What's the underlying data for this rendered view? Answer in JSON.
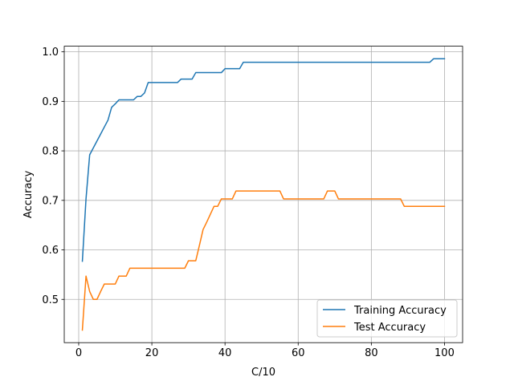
{
  "chart_data": {
    "type": "line",
    "title": "",
    "xlabel": "C/10",
    "ylabel": "Accuracy",
    "xlim": [
      -3.95,
      104.95
    ],
    "ylim": [
      0.4126,
      1.0114
    ],
    "xticks": [
      0,
      20,
      40,
      60,
      80,
      100
    ],
    "yticks": [
      0.5,
      0.6,
      0.7,
      0.8,
      0.9,
      1.0
    ],
    "xtick_labels": [
      "0",
      "20",
      "40",
      "60",
      "80",
      "100"
    ],
    "ytick_labels": [
      "0.5",
      "0.6",
      "0.7",
      "0.8",
      "0.9",
      "1.0"
    ],
    "grid": true,
    "legend_position": "lower-right",
    "series": [
      {
        "name": "Training Accuracy",
        "color": "#1f77b4",
        "x": [
          1,
          2,
          3,
          4,
          5,
          6,
          7,
          8,
          9,
          10,
          11,
          12,
          13,
          14,
          15,
          16,
          17,
          18,
          19,
          20,
          21,
          22,
          23,
          24,
          25,
          26,
          27,
          28,
          29,
          30,
          31,
          32,
          33,
          34,
          35,
          36,
          37,
          38,
          39,
          40,
          41,
          42,
          43,
          44,
          45,
          46,
          47,
          48,
          49,
          50,
          51,
          52,
          53,
          54,
          55,
          56,
          57,
          58,
          59,
          60,
          61,
          62,
          63,
          64,
          65,
          66,
          67,
          68,
          69,
          70,
          71,
          72,
          73,
          74,
          75,
          76,
          77,
          78,
          79,
          80,
          81,
          82,
          83,
          84,
          85,
          86,
          87,
          88,
          89,
          90,
          91,
          92,
          93,
          94,
          95,
          96,
          97,
          98,
          99,
          100
        ],
        "values": [
          0.577,
          0.703,
          0.792,
          0.806,
          0.82,
          0.834,
          0.848,
          0.862,
          0.888,
          0.895,
          0.903,
          0.903,
          0.903,
          0.903,
          0.903,
          0.91,
          0.91,
          0.917,
          0.938,
          0.938,
          0.938,
          0.938,
          0.938,
          0.938,
          0.938,
          0.938,
          0.938,
          0.945,
          0.945,
          0.945,
          0.945,
          0.958,
          0.958,
          0.958,
          0.958,
          0.958,
          0.958,
          0.958,
          0.958,
          0.966,
          0.966,
          0.966,
          0.966,
          0.966,
          0.979,
          0.979,
          0.979,
          0.979,
          0.979,
          0.979,
          0.979,
          0.979,
          0.979,
          0.979,
          0.979,
          0.979,
          0.979,
          0.979,
          0.979,
          0.979,
          0.979,
          0.979,
          0.979,
          0.979,
          0.979,
          0.979,
          0.979,
          0.979,
          0.979,
          0.979,
          0.979,
          0.979,
          0.979,
          0.979,
          0.979,
          0.979,
          0.979,
          0.979,
          0.979,
          0.979,
          0.979,
          0.979,
          0.979,
          0.979,
          0.979,
          0.979,
          0.979,
          0.979,
          0.979,
          0.979,
          0.979,
          0.979,
          0.979,
          0.979,
          0.979,
          0.979,
          0.986,
          0.986,
          0.986,
          0.986
        ]
      },
      {
        "name": "Test Accuracy",
        "color": "#ff7f0e",
        "x": [
          1,
          2,
          3,
          4,
          5,
          6,
          7,
          8,
          9,
          10,
          11,
          12,
          13,
          14,
          15,
          16,
          17,
          18,
          19,
          20,
          21,
          22,
          23,
          24,
          25,
          26,
          27,
          28,
          29,
          30,
          31,
          32,
          33,
          34,
          35,
          36,
          37,
          38,
          39,
          40,
          41,
          42,
          43,
          44,
          45,
          46,
          47,
          48,
          49,
          50,
          51,
          52,
          53,
          54,
          55,
          56,
          57,
          58,
          59,
          60,
          61,
          62,
          63,
          64,
          65,
          66,
          67,
          68,
          69,
          70,
          71,
          72,
          73,
          74,
          75,
          76,
          77,
          78,
          79,
          80,
          81,
          82,
          83,
          84,
          85,
          86,
          87,
          88,
          89,
          90,
          91,
          92,
          93,
          94,
          95,
          96,
          97,
          98,
          99,
          100
        ],
        "values": [
          0.438,
          0.547,
          0.516,
          0.5,
          0.5,
          0.516,
          0.531,
          0.531,
          0.531,
          0.531,
          0.547,
          0.547,
          0.547,
          0.563,
          0.563,
          0.563,
          0.563,
          0.563,
          0.563,
          0.563,
          0.563,
          0.563,
          0.563,
          0.563,
          0.563,
          0.563,
          0.563,
          0.563,
          0.563,
          0.578,
          0.578,
          0.578,
          0.609,
          0.641,
          0.656,
          0.672,
          0.688,
          0.688,
          0.703,
          0.703,
          0.703,
          0.703,
          0.719,
          0.719,
          0.719,
          0.719,
          0.719,
          0.719,
          0.719,
          0.719,
          0.719,
          0.719,
          0.719,
          0.719,
          0.719,
          0.703,
          0.703,
          0.703,
          0.703,
          0.703,
          0.703,
          0.703,
          0.703,
          0.703,
          0.703,
          0.703,
          0.703,
          0.719,
          0.719,
          0.719,
          0.703,
          0.703,
          0.703,
          0.703,
          0.703,
          0.703,
          0.703,
          0.703,
          0.703,
          0.703,
          0.703,
          0.703,
          0.703,
          0.703,
          0.703,
          0.703,
          0.703,
          0.703,
          0.688,
          0.688,
          0.688,
          0.688,
          0.688,
          0.688,
          0.688,
          0.688,
          0.688,
          0.688,
          0.688,
          0.688
        ]
      }
    ]
  }
}
